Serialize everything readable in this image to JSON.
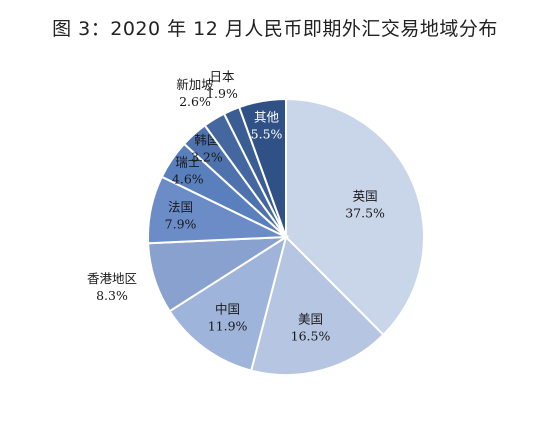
{
  "chart_data": {
    "type": "pie",
    "title": "图 3：2020 年 12 月人民币即期外汇交易地域分布",
    "unit": "%",
    "slices": [
      {
        "label": "英国",
        "value": 37.5,
        "value_text": "37.5%",
        "color": "#c9d5e9",
        "text_color": "#1a1a1a"
      },
      {
        "label": "美国",
        "value": 16.5,
        "value_text": "16.5%",
        "color": "#b6c6e2",
        "text_color": "#1a1a1a"
      },
      {
        "label": "中国",
        "value": 11.9,
        "value_text": "11.9%",
        "color": "#9fb4da",
        "text_color": "#1a1a1a"
      },
      {
        "label": "香港地区",
        "value": 8.3,
        "value_text": "8.3%",
        "color": "#88a1cf",
        "text_color": "#1a1a1a"
      },
      {
        "label": "法国",
        "value": 7.9,
        "value_text": "7.9%",
        "color": "#6b8cc7",
        "text_color": "#1a1a1a"
      },
      {
        "label": "瑞士",
        "value": 4.6,
        "value_text": "4.6%",
        "color": "#5a7fbd",
        "text_color": "#1a1a1a"
      },
      {
        "label": "韩国",
        "value": 3.2,
        "value_text": "3.2%",
        "color": "#4e72ad",
        "text_color": "#1a1a1a"
      },
      {
        "label": "新加坡",
        "value": 2.6,
        "value_text": "2.6%",
        "color": "#44679f",
        "text_color": "#1a1a1a"
      },
      {
        "label": "日本",
        "value": 1.9,
        "value_text": "1.9%",
        "color": "#3a5d94",
        "text_color": "#1a1a1a"
      },
      {
        "label": "其他",
        "value": 5.5,
        "value_text": "5.5%",
        "color": "#2f5185",
        "text_color": "#ffffff"
      }
    ]
  }
}
